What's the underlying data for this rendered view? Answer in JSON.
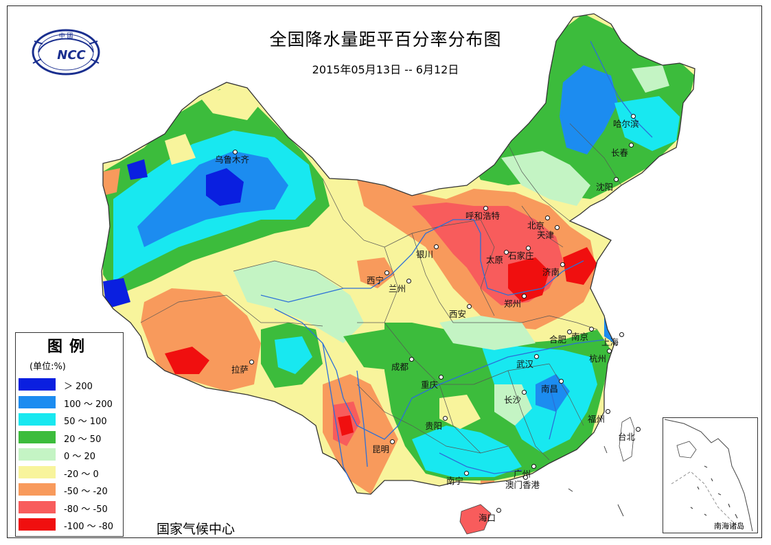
{
  "title": "全国降水量距平百分率分布图",
  "subtitle": "2015年05月13日 -- 6月12日",
  "logo_text": "NCC",
  "logo_top_text": "中 國",
  "agency": "国家气候中心",
  "inset_label": "南海诸岛",
  "legend": {
    "title": "图例",
    "unit": "(单位:%)",
    "items": [
      {
        "label": "＞ 200",
        "color": "#0a1fe0"
      },
      {
        "label": "100 ～ 200",
        "color": "#1c8cf0"
      },
      {
        "label": "50 ～ 100",
        "color": "#18e8f0"
      },
      {
        "label": "20 ～ 50",
        "color": "#3cbc3c"
      },
      {
        "label": "0 ～ 20",
        "color": "#c4f4c4"
      },
      {
        "label": "-20 ～ 0",
        "color": "#f8f49c"
      },
      {
        "label": "-50 ～ -20",
        "color": "#f89a5c"
      },
      {
        "label": "-80 ～ -50",
        "color": "#f85c5c"
      },
      {
        "label": "-100 ～ -80",
        "color": "#f00f0f"
      }
    ]
  },
  "cities": [
    {
      "name": "乌鲁木齐"
    },
    {
      "name": "哈尔滨"
    },
    {
      "name": "长春"
    },
    {
      "name": "沈阳"
    },
    {
      "name": "呼和浩特"
    },
    {
      "name": "北京"
    },
    {
      "name": "天津"
    },
    {
      "name": "石家庄"
    },
    {
      "name": "太原"
    },
    {
      "name": "济南"
    },
    {
      "name": "银川"
    },
    {
      "name": "西宁"
    },
    {
      "name": "兰州"
    },
    {
      "name": "西安"
    },
    {
      "name": "郑州"
    },
    {
      "name": "合肥"
    },
    {
      "name": "南京"
    },
    {
      "name": "上海"
    },
    {
      "name": "杭州"
    },
    {
      "name": "武汉"
    },
    {
      "name": "成都"
    },
    {
      "name": "重庆"
    },
    {
      "name": "拉萨"
    },
    {
      "name": "南昌"
    },
    {
      "name": "长沙"
    },
    {
      "name": "贵阳"
    },
    {
      "name": "福州"
    },
    {
      "name": "台北"
    },
    {
      "name": "昆明"
    },
    {
      "name": "南宁"
    },
    {
      "name": "广州"
    },
    {
      "name": "澳门香港"
    },
    {
      "name": "海口"
    }
  ]
}
